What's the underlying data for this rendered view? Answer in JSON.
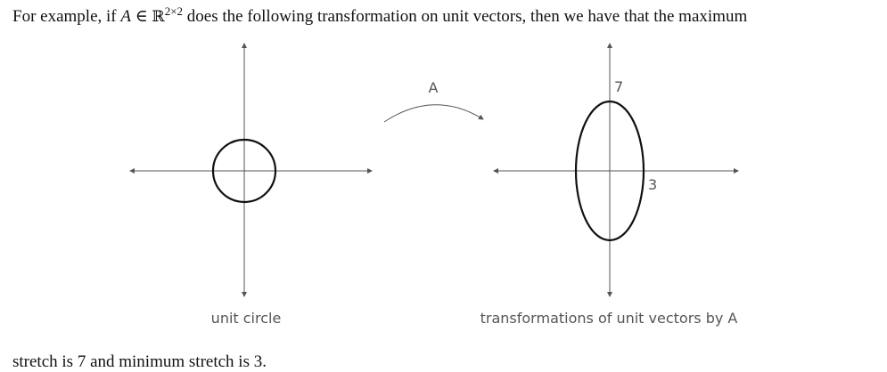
{
  "text": {
    "line1_before": "For example, if ",
    "var_A": "A",
    "elem_symbol": " ∈ ",
    "real_symbol": "ℝ",
    "dims": "2×2",
    "line1_after": " does the following transformation on unit vectors, then we have that the maximum",
    "line2": "stretch is 7 and minimum stretch is 3."
  },
  "figure": {
    "arrow_label": "A",
    "left_caption": "unit circle",
    "right_caption": "transformations of unit vectors by A",
    "label_top": "7",
    "label_right": "3"
  },
  "colors": {
    "axis": "#555555",
    "curve": "#111111",
    "text": "#111111"
  }
}
